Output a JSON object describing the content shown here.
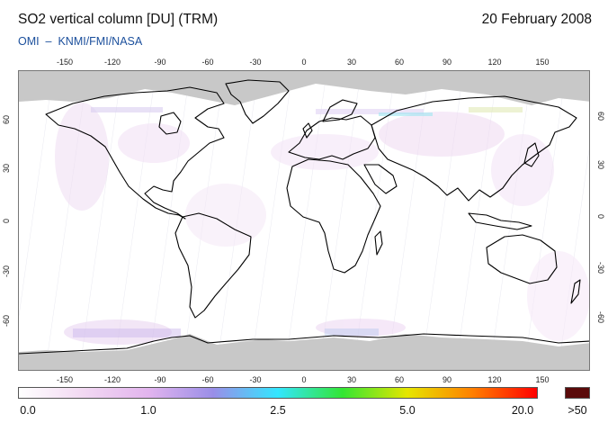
{
  "header": {
    "title": "SO2 vertical column [DU] (TRM)",
    "date": "20 February 2008",
    "source": "OMI  –  KNMI/FMI/NASA"
  },
  "map": {
    "projection": "equirectangular",
    "lon_ticks": [
      "-150",
      "-120",
      "-90",
      "-60",
      "-30",
      "0",
      "30",
      "60",
      "90",
      "120",
      "150"
    ],
    "lat_ticks": [
      "60",
      "30",
      "0",
      "-30",
      "-60"
    ],
    "no_data_color": "#c8c8c8",
    "coastline_color": "#000000"
  },
  "colorbar": {
    "labels": [
      "0.0",
      "1.0",
      "2.5",
      "5.0",
      "20.0",
      ">50"
    ],
    "stops": [
      "#ffffff",
      "#f2d8f2",
      "#e2b4ee",
      "#9a8ee8",
      "#33e6ff",
      "#33e633",
      "#e6e600",
      "#ff8000",
      "#ff0000"
    ],
    "overflow_color": "#5a0a0a"
  }
}
